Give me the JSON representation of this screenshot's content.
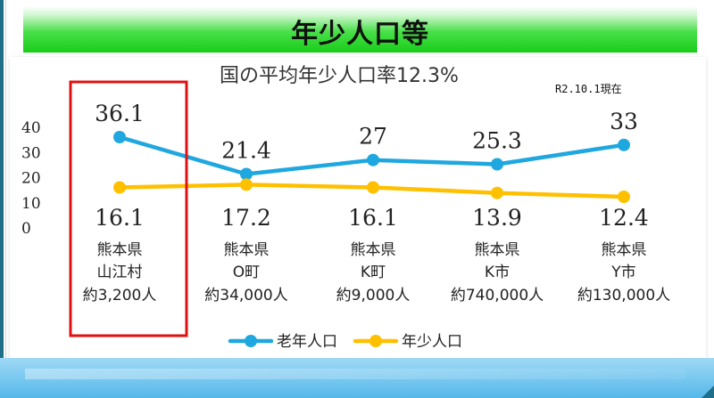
{
  "page": {
    "title": "年少人口等"
  },
  "note": "R2.10.1現在",
  "colors": {
    "elderly": "#1fa7df",
    "youth": "#ffc000",
    "highlight": "#e01010"
  },
  "chart_data": {
    "type": "line",
    "title": "国の平均年少人口率12.3%",
    "categories": [
      [
        "熊本県",
        "山江村",
        "約3,200人"
      ],
      [
        "熊本県",
        "O町",
        "約34,000人"
      ],
      [
        "熊本県",
        "K町",
        "約9,000人"
      ],
      [
        "熊本県",
        "K市",
        "約740,000人"
      ],
      [
        "熊本県",
        "Y市",
        "約130,000人"
      ]
    ],
    "series": [
      {
        "name": "老年人口",
        "values": [
          36.1,
          21.4,
          27,
          25.3,
          33
        ]
      },
      {
        "name": "年少人口",
        "values": [
          16.1,
          17.2,
          16.1,
          13.9,
          12.4
        ]
      }
    ],
    "yticks": [
      0,
      10,
      20,
      30,
      40
    ],
    "ylim": [
      0,
      40
    ],
    "legend": "bottom",
    "grid": false,
    "highlight_category": 0
  }
}
